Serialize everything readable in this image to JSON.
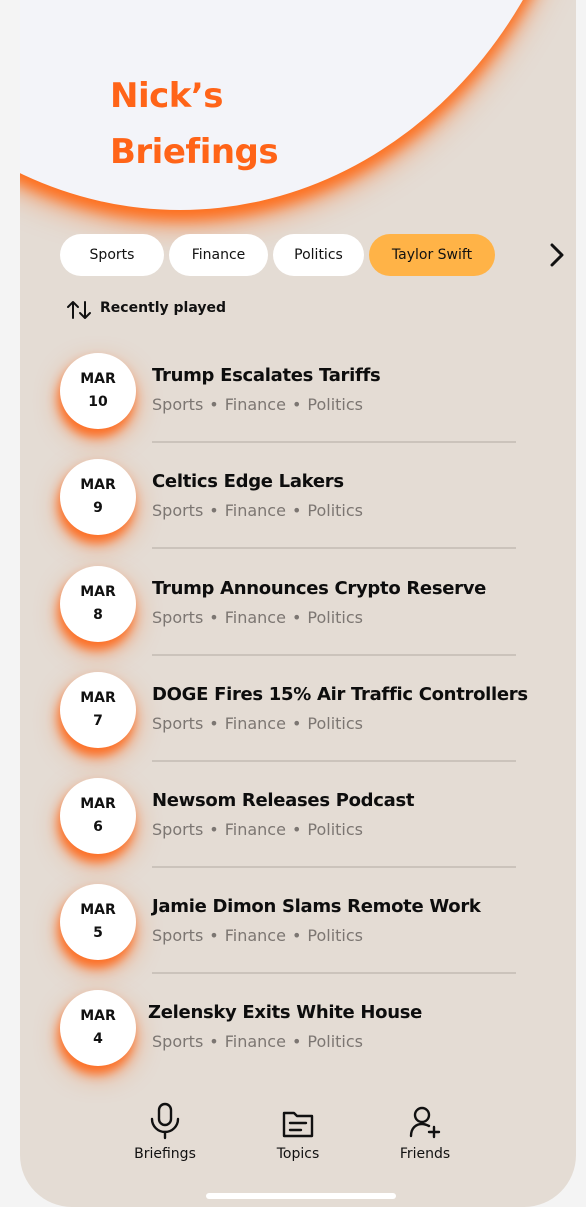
{
  "header": {
    "title_line1": "Nick’s",
    "title_line2": "Briefings"
  },
  "chips": [
    {
      "label": "Sports",
      "active": false
    },
    {
      "label": "Finance",
      "active": false
    },
    {
      "label": "Politics",
      "active": false
    },
    {
      "label": "Taylor Swift",
      "active": true
    }
  ],
  "sort": {
    "label": "Recently played",
    "icon": "sort-arrows-icon"
  },
  "briefings": [
    {
      "month": "MAR",
      "day": "10",
      "title": "Trump Escalates Tariffs",
      "tags": [
        "Sports",
        "Finance",
        "Politics"
      ]
    },
    {
      "month": "MAR",
      "day": "9",
      "title": "Celtics Edge Lakers",
      "tags": [
        "Sports",
        "Finance",
        "Politics"
      ]
    },
    {
      "month": "MAR",
      "day": "8",
      "title": "Trump Announces Crypto Reserve",
      "tags": [
        "Sports",
        "Finance",
        "Politics"
      ]
    },
    {
      "month": "MAR",
      "day": "7",
      "title": "DOGE Fires 15% Air Traffic Controllers",
      "tags": [
        "Sports",
        "Finance",
        "Politics"
      ]
    },
    {
      "month": "MAR",
      "day": "6",
      "title": "Newsom Releases Podcast",
      "tags": [
        "Sports",
        "Finance",
        "Politics"
      ]
    },
    {
      "month": "MAR",
      "day": "5",
      "title": "Jamie Dimon Slams Remote Work",
      "tags": [
        "Sports",
        "Finance",
        "Politics"
      ]
    },
    {
      "month": "MAR",
      "day": "4",
      "title": "Zelensky Exits White House",
      "tags": [
        "Sports",
        "Finance",
        "Politics"
      ]
    }
  ],
  "nav": [
    {
      "label": "Briefings",
      "icon": "microphone-icon"
    },
    {
      "label": "Topics",
      "icon": "document-icon"
    },
    {
      "label": "Friends",
      "icon": "add-friend-icon"
    }
  ],
  "colors": {
    "accent": "#ff6418",
    "active_chip": "#ffb347",
    "background": "#e4dcd4",
    "header": "#f3f4f9"
  }
}
